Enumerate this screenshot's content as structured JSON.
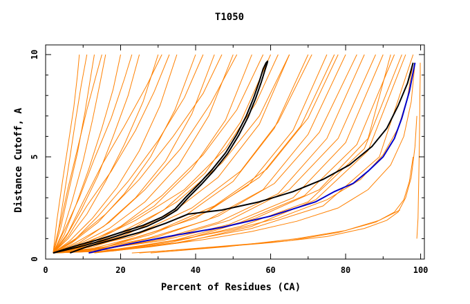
{
  "chart_data": {
    "type": "line",
    "title": "T1050",
    "xlabel": "Percent of Residues (CA)",
    "ylabel": "Distance Cutoff, A",
    "xlim": [
      0,
      101
    ],
    "ylim": [
      0,
      10
    ],
    "x_ticks": [
      0,
      20,
      40,
      60,
      80,
      100
    ],
    "y_ticks": [
      0,
      5,
      10
    ],
    "x_tick_labels": [
      "0",
      "20",
      "40",
      "60",
      "80",
      "100"
    ],
    "y_tick_labels": [
      "0",
      "5",
      "10"
    ],
    "grid": false,
    "legend": "none",
    "colors": {
      "other_models": "#ff8000",
      "highlight_blue": "#0000cc",
      "highlight_black": "#000000",
      "axes": "#000000"
    },
    "series": [
      {
        "color": "#ff8000",
        "x": [
          2,
          3.5,
          5,
          6.5,
          8,
          9.5,
          10.5,
          11
        ],
        "y": [
          0.3,
          1.5,
          3.2,
          5,
          6.8,
          8.5,
          9.5,
          10
        ]
      },
      {
        "color": "#ff8000",
        "x": [
          2,
          4,
          6,
          8.5,
          10.5,
          12,
          13
        ],
        "y": [
          0.3,
          1.5,
          3.2,
          5.2,
          7.2,
          8.9,
          10
        ]
      },
      {
        "color": "#ff8000",
        "x": [
          2,
          4.5,
          7,
          10,
          12.5,
          14.5,
          16
        ],
        "y": [
          0.3,
          1.3,
          2.8,
          4.8,
          6.8,
          8.6,
          10
        ]
      },
      {
        "color": "#ff8000",
        "x": [
          2,
          5,
          8,
          11.5,
          15,
          18,
          20
        ],
        "y": [
          0.3,
          1.2,
          2.6,
          4.4,
          6.4,
          8.3,
          10
        ]
      },
      {
        "color": "#ff8000",
        "x": [
          2,
          5.5,
          9.5,
          14,
          18,
          22,
          25
        ],
        "y": [
          0.3,
          1.1,
          2.4,
          4.1,
          6,
          8,
          10
        ]
      },
      {
        "color": "#ff8000",
        "x": [
          2,
          6,
          11,
          16,
          21,
          26,
          30
        ],
        "y": [
          0.3,
          1,
          2.2,
          3.8,
          5.6,
          7.7,
          10
        ]
      },
      {
        "color": "#ff8000",
        "x": [
          2,
          6.5,
          12.5,
          19,
          25,
          30.5,
          35
        ],
        "y": [
          0.3,
          0.9,
          2,
          3.5,
          5.3,
          7.5,
          10
        ]
      },
      {
        "color": "#ff8000",
        "x": [
          2,
          7,
          14,
          21,
          28,
          34.5,
          40
        ],
        "y": [
          0.3,
          0.8,
          1.8,
          3.2,
          5,
          7.3,
          10
        ]
      },
      {
        "color": "#ff8000",
        "x": [
          2,
          8,
          15.5,
          24,
          32,
          39,
          45
        ],
        "y": [
          0.3,
          0.8,
          1.6,
          3,
          4.8,
          7.1,
          10
        ]
      },
      {
        "color": "#ff8000",
        "x": [
          2,
          8.5,
          17,
          26.5,
          35.5,
          43.5,
          50
        ],
        "y": [
          0.3,
          0.7,
          1.5,
          2.8,
          4.6,
          7,
          10
        ]
      },
      {
        "color": "#ff8000",
        "x": [
          2,
          9,
          18.5,
          29,
          39,
          48,
          55
        ],
        "y": [
          0.3,
          0.7,
          1.4,
          2.6,
          4.4,
          6.8,
          10
        ]
      },
      {
        "color": "#ff8000",
        "x": [
          2,
          10,
          20,
          31.5,
          42.5,
          52,
          60
        ],
        "y": [
          0.3,
          0.6,
          1.3,
          2.4,
          4.2,
          6.7,
          10
        ]
      },
      {
        "color": "#ff8000",
        "x": [
          2,
          10.5,
          21.5,
          34,
          46,
          57,
          65
        ],
        "y": [
          0.3,
          0.6,
          1.2,
          2.3,
          4,
          6.6,
          10
        ]
      },
      {
        "color": "#ff8000",
        "x": [
          2,
          11,
          23,
          37,
          50,
          61,
          70
        ],
        "y": [
          0.3,
          0.6,
          1.1,
          2.1,
          3.8,
          6.4,
          10
        ]
      },
      {
        "color": "#ff8000",
        "x": [
          2,
          12,
          25,
          40,
          54,
          66,
          75
        ],
        "y": [
          0.3,
          0.5,
          1.1,
          2,
          3.6,
          6.3,
          10
        ]
      },
      {
        "color": "#ff8000",
        "x": [
          2,
          13,
          27,
          43,
          58,
          70,
          80
        ],
        "y": [
          0.3,
          0.5,
          1,
          1.9,
          3.4,
          6.1,
          10
        ]
      },
      {
        "color": "#ff8000",
        "x": [
          2,
          14,
          29,
          46,
          62,
          75,
          85
        ],
        "y": [
          0.3,
          0.5,
          0.9,
          1.8,
          3.2,
          5.9,
          10
        ]
      },
      {
        "color": "#ff8000",
        "x": [
          2,
          15,
          31,
          49,
          66,
          80,
          90
        ],
        "y": [
          0.3,
          0.5,
          0.9,
          1.7,
          3,
          5.7,
          10
        ]
      },
      {
        "color": "#ff8000",
        "x": [
          2,
          16,
          33,
          52,
          70,
          85,
          95
        ],
        "y": [
          0.3,
          0.4,
          0.8,
          1.6,
          2.8,
          5.4,
          10
        ]
      },
      {
        "color": "#ff8000",
        "x": [
          2,
          17,
          35,
          55,
          74,
          89,
          98
        ],
        "y": [
          0.3,
          0.4,
          0.8,
          1.5,
          2.6,
          5,
          10
        ]
      },
      {
        "color": "#ff8000",
        "x": [
          2,
          4,
          6,
          8.5,
          11,
          13.5,
          15
        ],
        "y": [
          0.3,
          1.8,
          3.5,
          5.4,
          7.3,
          9,
          10
        ]
      },
      {
        "color": "#ff8000",
        "x": [
          2,
          5,
          9,
          13,
          17.5,
          21,
          23
        ],
        "y": [
          0.3,
          1.4,
          3,
          4.9,
          6.9,
          8.8,
          10
        ]
      },
      {
        "color": "#ff8000",
        "x": [
          2,
          6,
          11,
          17.5,
          24,
          29,
          33
        ],
        "y": [
          0.3,
          1.1,
          2.6,
          4.3,
          6.3,
          8.2,
          10
        ]
      },
      {
        "color": "#ff8000",
        "x": [
          2,
          7.5,
          14,
          22,
          30,
          37,
          42
        ],
        "y": [
          0.3,
          0.9,
          2.1,
          3.8,
          5.8,
          7.9,
          10
        ]
      },
      {
        "color": "#ff8000",
        "x": [
          2,
          9,
          17,
          26.5,
          36,
          44,
          51
        ],
        "y": [
          0.3,
          0.8,
          1.8,
          3.4,
          5.4,
          7.6,
          10
        ]
      },
      {
        "color": "#ff8000",
        "x": [
          2,
          10,
          20,
          31,
          42,
          51,
          58
        ],
        "y": [
          0.3,
          0.7,
          1.6,
          3.1,
          5.1,
          7.3,
          10
        ]
      },
      {
        "color": "#ff8000",
        "x": [
          2,
          11.5,
          22.5,
          35,
          47,
          57,
          65
        ],
        "y": [
          0.3,
          0.6,
          1.4,
          2.8,
          4.7,
          7,
          10
        ]
      },
      {
        "color": "#ff8000",
        "x": [
          2,
          12.5,
          25,
          39,
          52,
          62,
          71
        ],
        "y": [
          0.3,
          0.6,
          1.3,
          2.5,
          4.3,
          6.7,
          10
        ]
      },
      {
        "color": "#ff8000",
        "x": [
          2,
          14,
          28,
          43,
          57,
          68,
          77
        ],
        "y": [
          0.3,
          0.5,
          1.2,
          2.3,
          4,
          6.5,
          10
        ]
      },
      {
        "color": "#ff8000",
        "x": [
          2,
          15,
          30,
          46,
          61,
          73,
          83
        ],
        "y": [
          0.3,
          0.5,
          1.1,
          2.1,
          3.7,
          6.2,
          10
        ]
      },
      {
        "color": "#ff8000",
        "x": [
          2,
          16,
          32,
          49,
          65,
          78,
          88
        ],
        "y": [
          0.3,
          0.5,
          1,
          1.9,
          3.4,
          5.9,
          10
        ]
      },
      {
        "color": "#ff8000",
        "x": [
          2,
          17,
          34,
          52,
          69,
          83,
          93
        ],
        "y": [
          0.3,
          0.4,
          0.9,
          1.8,
          3.1,
          5.6,
          10
        ]
      },
      {
        "color": "#ff8000",
        "x": [
          2,
          18,
          36,
          55,
          72,
          86,
          96
        ],
        "y": [
          0.3,
          0.4,
          0.8,
          1.6,
          2.9,
          5.3,
          10
        ]
      },
      {
        "color": "#ff8000",
        "x": [
          2,
          3,
          4.5,
          6,
          7.5,
          8.5,
          9
        ],
        "y": [
          0.3,
          1.9,
          3.8,
          5.6,
          7.4,
          9,
          10
        ]
      },
      {
        "color": "#ff8000",
        "x": [
          2,
          6,
          10,
          15,
          21,
          27,
          31
        ],
        "y": [
          0.3,
          1.3,
          2.8,
          4.6,
          6.5,
          8.5,
          10
        ]
      },
      {
        "color": "#ff8000",
        "x": [
          2,
          8,
          16,
          25,
          34,
          42,
          47
        ],
        "y": [
          0.3,
          1,
          2.2,
          3.9,
          6,
          8.1,
          10
        ]
      },
      {
        "color": "#ff8000",
        "x": [
          2,
          12,
          24,
          37,
          48,
          56,
          62
        ],
        "y": [
          0.3,
          0.8,
          1.9,
          3.4,
          5.4,
          7.6,
          10
        ]
      },
      {
        "color": "#ff8000",
        "x": [
          2,
          16,
          30,
          45,
          59,
          70,
          78
        ],
        "y": [
          0.3,
          0.6,
          1.4,
          2.6,
          4.4,
          6.9,
          10
        ]
      },
      {
        "color": "#ff8000",
        "x": [
          2,
          20,
          38,
          56,
          73,
          86,
          92
        ],
        "y": [
          0.3,
          0.5,
          1,
          2,
          3.4,
          5.9,
          10
        ]
      },
      {
        "color": "#ff8000",
        "x": [
          23,
          40,
          60,
          75,
          85,
          91,
          94,
          96,
          97.5,
          98.5,
          99
        ],
        "y": [
          0.3,
          0.5,
          0.8,
          1.1,
          1.5,
          1.9,
          2.3,
          3,
          4,
          5.5,
          7
        ]
      },
      {
        "color": "#ff8000",
        "x": [
          25,
          45,
          65,
          78,
          88,
          93,
          95.5,
          97,
          98
        ],
        "y": [
          0.3,
          0.6,
          0.9,
          1.3,
          1.8,
          2.3,
          2.9,
          3.8,
          5
        ]
      },
      {
        "color": "#ff8000",
        "x": [
          28,
          48,
          67,
          80,
          89,
          94.5
        ],
        "y": [
          0.3,
          0.6,
          1,
          1.4,
          1.9,
          2.4
        ]
      },
      {
        "color": "#ff8000",
        "x": [
          12,
          25,
          37,
          50,
          62,
          75,
          84,
          90,
          94,
          96.5,
          98
        ],
        "y": [
          0.3,
          0.65,
          1,
          1.45,
          2,
          2.9,
          3.9,
          5.1,
          6.4,
          7.9,
          9.6
        ]
      },
      {
        "color": "#ff8000",
        "x": [
          13,
          28,
          42,
          55,
          67,
          78,
          86,
          92,
          95.5,
          97.5,
          98.5
        ],
        "y": [
          0.3,
          0.6,
          0.95,
          1.35,
          1.85,
          2.5,
          3.4,
          4.6,
          6,
          7.7,
          9.6
        ]
      },
      {
        "color": "#ff8000",
        "x": [
          99,
          99.3,
          99.5,
          99.7,
          99.8,
          99.9,
          99.9
        ],
        "y": [
          1,
          2,
          4,
          6,
          8,
          9,
          9.6
        ]
      },
      {
        "color": "#0000cc",
        "x": [
          11.5,
          16,
          24,
          34,
          47,
          60,
          72,
          77,
          82,
          86,
          90,
          93,
          95,
          97,
          98.5
        ],
        "y": [
          0.3,
          0.5,
          0.8,
          1.15,
          1.55,
          2.1,
          2.8,
          3.3,
          3.7,
          4.3,
          5,
          5.9,
          6.9,
          8.2,
          9.6
        ]
      },
      {
        "color": "#000000",
        "x": [
          6.5,
          11,
          17,
          25,
          32,
          38,
          47,
          57,
          66,
          74,
          81,
          87,
          91,
          94,
          96.5,
          98
        ],
        "y": [
          0.3,
          0.6,
          0.9,
          1.3,
          1.75,
          2.2,
          2.4,
          2.8,
          3.3,
          3.9,
          4.6,
          5.5,
          6.4,
          7.5,
          8.6,
          9.6
        ]
      },
      {
        "color": "#000000",
        "x": [
          2,
          8,
          14,
          20,
          26,
          31,
          34.5,
          37.5,
          41,
          44.5,
          48,
          51,
          53.5,
          55.5,
          57,
          58,
          58.8,
          59.3
        ],
        "y": [
          0.3,
          0.65,
          0.95,
          1.3,
          1.65,
          2.05,
          2.45,
          3.05,
          3.7,
          4.4,
          5.2,
          6.1,
          7,
          7.9,
          8.7,
          9.3,
          9.6,
          9.7
        ]
      },
      {
        "color": "#000000",
        "x": [
          2,
          9,
          15,
          21,
          27,
          31.5,
          35,
          38,
          41.5,
          45,
          48.5,
          51.5,
          54,
          56,
          57.5,
          58.5,
          59.2
        ],
        "y": [
          0.3,
          0.6,
          0.9,
          1.25,
          1.6,
          2,
          2.4,
          3,
          3.65,
          4.35,
          5.15,
          6.05,
          6.95,
          7.85,
          8.65,
          9.25,
          9.65
        ]
      }
    ]
  }
}
